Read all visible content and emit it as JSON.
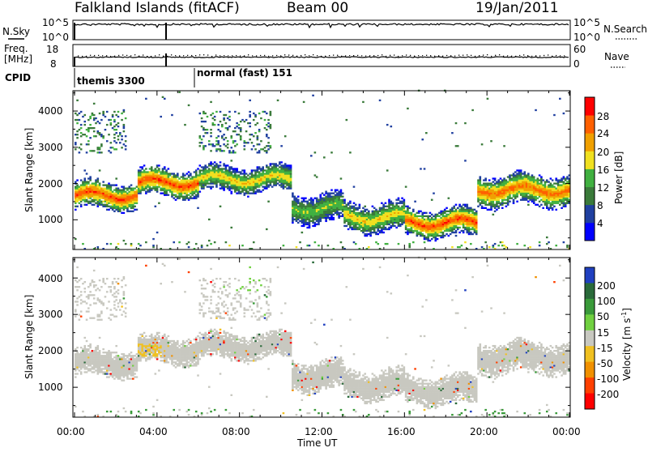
{
  "header": {
    "station": "Falkland Islands (fitACF)",
    "beam": "Beam 00",
    "date": "19/Jan/2011"
  },
  "sky_panel": {
    "left_label": "N.Sky",
    "right_label": "N.Search",
    "left_ticks": [
      "10^5",
      "10^0"
    ],
    "right_ticks": [
      "10^5",
      "10^0"
    ]
  },
  "freq_panel": {
    "left_label_1": "Freq.",
    "left_label_2": "[MHz]",
    "right_label": "Nave",
    "left_ticks": [
      "18",
      "8"
    ],
    "right_ticks": [
      "60",
      "0"
    ]
  },
  "cpid": {
    "label": "CPID",
    "modes": [
      {
        "text": "themis 3300",
        "start_hour": 0.0
      },
      {
        "text": "normal (fast) 151",
        "start_hour": 5.95
      }
    ]
  },
  "power_panel": {
    "ylabel": "Slant Range [km]",
    "yticks": [
      "4000",
      "3000",
      "2000",
      "1000"
    ],
    "colorbar_label": "Power [dB]",
    "colorbar_ticks": [
      "28",
      "24",
      "20",
      "16",
      "12",
      "8",
      "4"
    ],
    "colors": [
      "#0000ff",
      "#2040a0",
      "#3a7a3a",
      "#40b040",
      "#f0e020",
      "#f0a000",
      "#ff6000",
      "#ff0000"
    ]
  },
  "velocity_panel": {
    "ylabel": "Slant Range [km]",
    "yticks": [
      "4000",
      "3000",
      "2000",
      "1000"
    ],
    "colorbar_label": "Velocity [m s^-1]",
    "colorbar_ticks": [
      "200",
      "100",
      "50",
      "15",
      "-15",
      "-50",
      "-100",
      "-200"
    ],
    "colors": [
      "#2040c0",
      "#2a6a3a",
      "#3a9a3a",
      "#70d040",
      "#c8c8c0",
      "#f0c020",
      "#f09000",
      "#ff4000",
      "#ff0000"
    ]
  },
  "xaxis": {
    "label": "Time UT",
    "ticks": [
      "00:00",
      "04:00",
      "08:00",
      "12:00",
      "16:00",
      "20:00",
      "00:00"
    ]
  },
  "chart_data": {
    "type": "heatmap",
    "title": "Falkland Islands (fitACF)",
    "xlabel": "Time UT",
    "ylabel": "Slant Range [km]",
    "xlim_hours": [
      0,
      24
    ],
    "ylim_km": [
      180,
      4560
    ],
    "power_colorbar_db": [
      4,
      8,
      12,
      16,
      20,
      24,
      28
    ],
    "velocity_colorbar_ms": [
      -200,
      -100,
      -50,
      -15,
      15,
      50,
      100,
      200
    ],
    "backscatter_bands": [
      {
        "t_start": 0.0,
        "t_end": 3.0,
        "range_center_km": 1650,
        "half_width_km": 280,
        "peak_power_db": 26
      },
      {
        "t_start": 3.0,
        "t_end": 6.0,
        "range_center_km": 2000,
        "half_width_km": 280,
        "peak_power_db": 26
      },
      {
        "t_start": 6.0,
        "t_end": 10.5,
        "range_center_km": 2100,
        "half_width_km": 250,
        "peak_power_db": 18
      },
      {
        "t_start": 10.5,
        "t_end": 13.0,
        "range_center_km": 1300,
        "half_width_km": 300,
        "peak_power_db": 14
      },
      {
        "t_start": 13.0,
        "t_end": 16.0,
        "range_center_km": 1050,
        "half_width_km": 300,
        "peak_power_db": 18
      },
      {
        "t_start": 16.0,
        "t_end": 19.5,
        "range_center_km": 900,
        "half_width_km": 280,
        "peak_power_db": 26
      },
      {
        "t_start": 19.5,
        "t_end": 24.0,
        "range_center_km": 1800,
        "half_width_km": 320,
        "peak_power_db": 24
      }
    ]
  }
}
